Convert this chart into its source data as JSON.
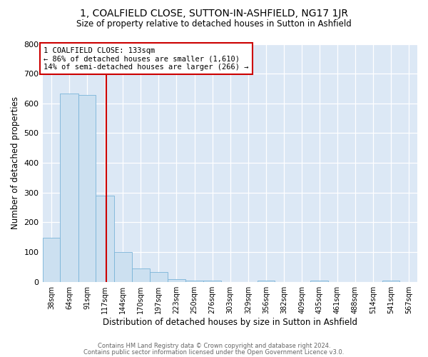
{
  "title_line1": "1, COALFIELD CLOSE, SUTTON-IN-ASHFIELD, NG17 1JR",
  "title_line2": "Size of property relative to detached houses in Sutton in Ashfield",
  "xlabel": "Distribution of detached houses by size in Sutton in Ashfield",
  "ylabel": "Number of detached properties",
  "bin_labels": [
    "38sqm",
    "64sqm",
    "91sqm",
    "117sqm",
    "144sqm",
    "170sqm",
    "197sqm",
    "223sqm",
    "250sqm",
    "276sqm",
    "303sqm",
    "329sqm",
    "356sqm",
    "382sqm",
    "409sqm",
    "435sqm",
    "461sqm",
    "488sqm",
    "514sqm",
    "541sqm",
    "567sqm"
  ],
  "bar_values": [
    148,
    632,
    628,
    290,
    100,
    46,
    32,
    10,
    5,
    5,
    0,
    0,
    5,
    0,
    0,
    5,
    0,
    0,
    0,
    5,
    0
  ],
  "bar_color": "#cce0f0",
  "bar_edge_color": "#7ab4d8",
  "ylim": [
    0,
    800
  ],
  "yticks": [
    0,
    100,
    200,
    300,
    400,
    500,
    600,
    700,
    800
  ],
  "bin_edges": [
    38,
    64,
    91,
    117,
    144,
    170,
    197,
    223,
    250,
    276,
    303,
    329,
    356,
    382,
    409,
    435,
    461,
    488,
    514,
    541,
    567,
    593
  ],
  "annotation_line1": "1 COALFIELD CLOSE: 133sqm",
  "annotation_line2": "← 86% of detached houses are smaller (1,610)",
  "annotation_line3": "14% of semi-detached houses are larger (266) →",
  "vline_x": 133,
  "vline_color": "#cc0000",
  "box_color": "#cc0000",
  "footer_line1": "Contains HM Land Registry data © Crown copyright and database right 2024.",
  "footer_line2": "Contains public sector information licensed under the Open Government Licence v3.0.",
  "fig_bg_color": "#ffffff",
  "plot_bg_color": "#dce8f5"
}
